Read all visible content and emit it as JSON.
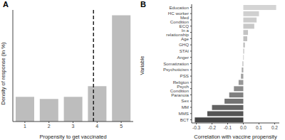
{
  "chart_data": [
    {
      "type": "bar",
      "title": "A",
      "x": [
        1,
        2,
        3,
        4,
        5
      ],
      "values": [
        11.5,
        10.5,
        11.5,
        16.5,
        49.5
      ],
      "color": "#bdbdbd",
      "xlim": [
        0.5,
        5.5
      ],
      "xticks": [
        1,
        2,
        3,
        4,
        5
      ],
      "ylim": [
        0,
        52
      ],
      "tick_labels": "x",
      "x_label": "Propensity to get vaccinated",
      "y_label": "Density of response (in %)",
      "reference_line": {
        "x": 3.85,
        "line_style": "dashed"
      }
    },
    {
      "type": "bar",
      "title": "B",
      "orientation": "horizontal",
      "categories": [
        "Education",
        "HC worker",
        "Med Condition",
        "ECQ",
        "In a relationship",
        "Age",
        "GHQ",
        "STAI",
        "Anger",
        "Somatization",
        "Psychoticism",
        "PSS",
        "Religion",
        "Psych Condition",
        "Paranoia",
        "Sex",
        "MM",
        "MMS",
        "BCT"
      ],
      "values": [
        0.21,
        0.1,
        0.085,
        0.07,
        0.03,
        0.025,
        0.01,
        0.005,
        0.003,
        -0.005,
        -0.01,
        -0.015,
        -0.03,
        -0.06,
        -0.09,
        -0.12,
        -0.2,
        -0.23,
        -0.31
      ],
      "colors": [
        "#d4d4d4",
        "#d0d0d0",
        "#cccccc",
        "#c8c8c8",
        "#c4c4c4",
        "#c0c0c0",
        "#bcbcbc",
        "#b8b8b8",
        "#b4b4b4",
        "#b0b0b0",
        "#a8a8a8",
        "#a0a0a0",
        "#989898",
        "#8c8c8c",
        "#808080",
        "#737373",
        "#636363",
        "#555555",
        "#444444"
      ],
      "xlim": [
        -0.33,
        0.23
      ],
      "xticks": [
        -0.3,
        -0.2,
        -0.1,
        {
          "value": 0,
          "label": "0.0"
        },
        0.1,
        0.2
      ],
      "x_label": "Correlation with vaccine propensity",
      "y_label": "Variable"
    }
  ]
}
